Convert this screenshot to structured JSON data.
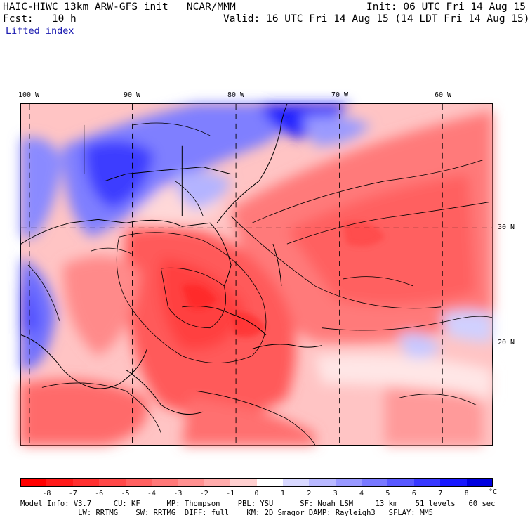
{
  "header": {
    "title_left": "HAIC-HIWC 13km ARW-GFS init   NCAR/MMM",
    "fcst": "Fcst:   10 h",
    "init": "Init: 06 UTC Fri 14 Aug 15",
    "valid": "Valid: 16 UTC Fri 14 Aug 15 (14 LDT Fri 14 Aug 15)",
    "field": "Lifted index"
  },
  "map": {
    "lon_labels": [
      "100 W",
      "90 W",
      "80 W",
      "70 W",
      "60 W"
    ],
    "lat_labels": [
      "30 N",
      "20 N"
    ]
  },
  "colorbar": {
    "ticks": [
      "-8",
      "-7",
      "-6",
      "-5",
      "-4",
      "-3",
      "-2",
      "-1",
      "0",
      "1",
      "2",
      "3",
      "4",
      "5",
      "6",
      "7",
      "8"
    ],
    "unit": "°C",
    "colors": [
      "#ff0000",
      "#ff1a1a",
      "#ff3030",
      "#ff4848",
      "#ff6060",
      "#ff7878",
      "#ff9090",
      "#ffabab",
      "#ffd0d0",
      "#ffffff",
      "#d8d8ff",
      "#b8b8ff",
      "#9898ff",
      "#7878ff",
      "#5858ff",
      "#3838ff",
      "#1818ff",
      "#0000e0"
    ]
  },
  "footer": {
    "line1": "Model Info: V3.7     CU: KF      MP: Thompson    PBL: YSU      SF: Noah LSM     13 km    51 levels   60 sec",
    "line2": "             LW: RRTMG    SW: RRTMG  DIFF: full    KM: 2D Smagor DAMP: Rayleigh3   SFLAY: MM5"
  }
}
